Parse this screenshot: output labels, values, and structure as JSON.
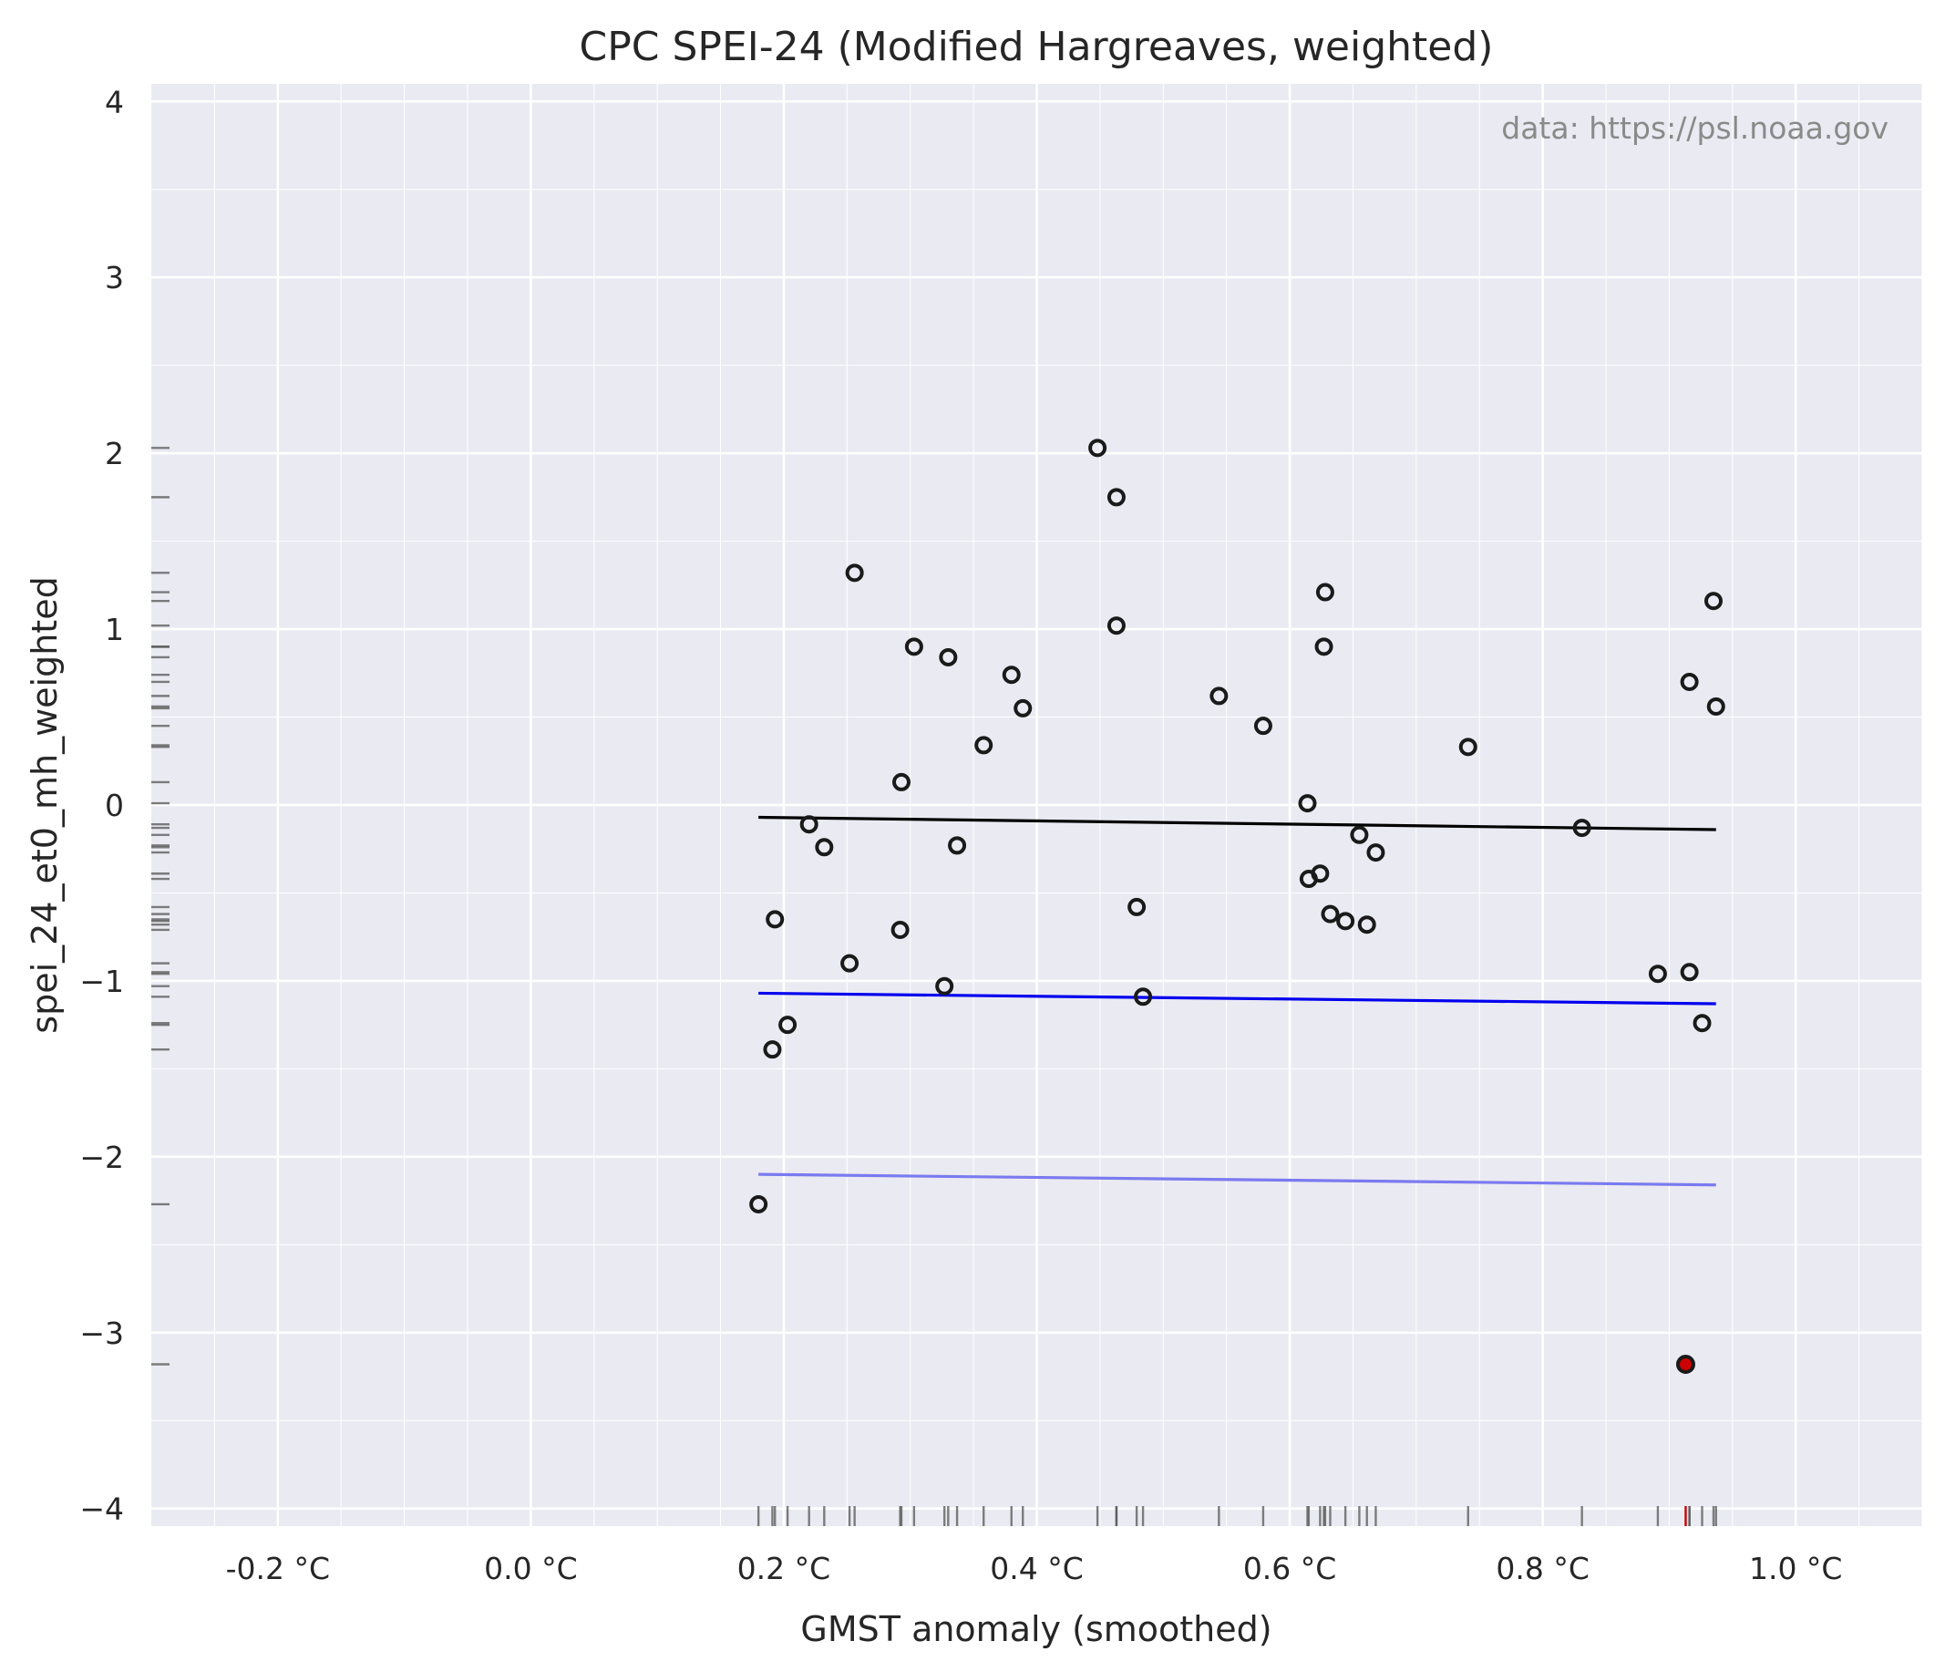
{
  "chart_data": {
    "type": "scatter",
    "title": "CPC SPEI-24 (Modified Hargreaves, weighted)",
    "xlabel": "GMST anomaly (smoothed)",
    "ylabel": "spei_24_et0_mh_weighted",
    "source_note": "data: https://psl.noaa.gov",
    "xlim": [
      -0.3,
      1.1
    ],
    "ylim": [
      -4.1,
      4.1
    ],
    "x_ticks": [
      {
        "value": -0.2,
        "label": "-0.2 °C"
      },
      {
        "value": 0.0,
        "label": "0.0 °C"
      },
      {
        "value": 0.2,
        "label": "0.2 °C"
      },
      {
        "value": 0.4,
        "label": "0.4 °C"
      },
      {
        "value": 0.6,
        "label": "0.6 °C"
      },
      {
        "value": 0.8,
        "label": "0.8 °C"
      },
      {
        "value": 1.0,
        "label": "1.0 °C"
      }
    ],
    "y_ticks": [
      {
        "value": 4,
        "label": "4"
      },
      {
        "value": 3,
        "label": "3"
      },
      {
        "value": 2,
        "label": "2"
      },
      {
        "value": 1,
        "label": "1"
      },
      {
        "value": 0,
        "label": "0"
      },
      {
        "value": -1,
        "label": "−1"
      },
      {
        "value": -2,
        "label": "−2"
      },
      {
        "value": -3,
        "label": "−3"
      },
      {
        "value": -4,
        "label": "−4"
      }
    ],
    "grid": true,
    "background_color": "#eaeaf2",
    "points": [
      [
        0.18,
        -2.27
      ],
      [
        0.191,
        -1.39
      ],
      [
        0.193,
        -0.65
      ],
      [
        0.203,
        -1.25
      ],
      [
        0.22,
        -0.11
      ],
      [
        0.232,
        -0.24
      ],
      [
        0.252,
        -0.9
      ],
      [
        0.256,
        1.32
      ],
      [
        0.292,
        -0.71
      ],
      [
        0.293,
        0.13
      ],
      [
        0.303,
        0.9
      ],
      [
        0.327,
        -1.03
      ],
      [
        0.33,
        0.84
      ],
      [
        0.337,
        -0.23
      ],
      [
        0.358,
        0.34
      ],
      [
        0.38,
        0.74
      ],
      [
        0.389,
        0.55
      ],
      [
        0.448,
        2.03
      ],
      [
        0.463,
        1.75
      ],
      [
        0.463,
        1.02
      ],
      [
        0.479,
        -0.58
      ],
      [
        0.484,
        -1.09
      ],
      [
        0.544,
        0.62
      ],
      [
        0.579,
        0.45
      ],
      [
        0.614,
        0.01
      ],
      [
        0.615,
        -0.42
      ],
      [
        0.624,
        -0.39
      ],
      [
        0.627,
        0.9
      ],
      [
        0.628,
        1.21
      ],
      [
        0.632,
        -0.62
      ],
      [
        0.644,
        -0.66
      ],
      [
        0.655,
        -0.17
      ],
      [
        0.661,
        -0.68
      ],
      [
        0.668,
        -0.27
      ],
      [
        0.741,
        0.33
      ],
      [
        0.831,
        -0.13
      ],
      [
        0.891,
        -0.96
      ],
      [
        0.916,
        -0.95
      ],
      [
        0.916,
        0.7
      ],
      [
        0.926,
        -1.24
      ],
      [
        0.935,
        1.16
      ],
      [
        0.937,
        0.56
      ]
    ],
    "highlight_point": {
      "x": 0.913,
      "y": -3.18,
      "color": "#cc0000"
    },
    "fit_lines": [
      {
        "color": "#000000",
        "x": [
          0.18,
          0.937
        ],
        "y": [
          -0.07,
          -0.14
        ]
      },
      {
        "color": "#0000ee",
        "x": [
          0.18,
          0.937
        ],
        "y": [
          -1.07,
          -1.13
        ]
      },
      {
        "color": "#7a7af0",
        "x": [
          0.18,
          0.937
        ],
        "y": [
          -2.1,
          -2.16
        ]
      }
    ]
  }
}
